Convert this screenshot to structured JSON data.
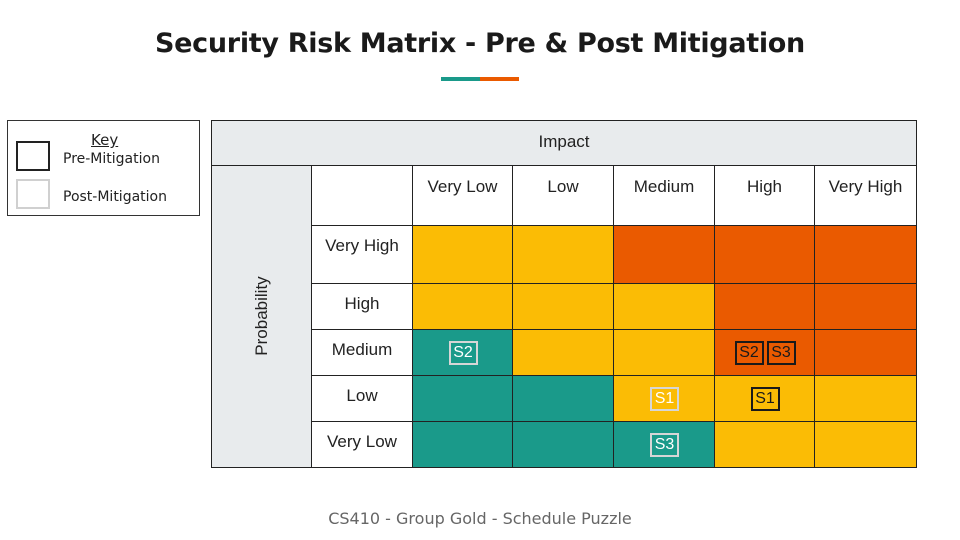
{
  "title": "Security Risk Matrix - Pre & Post Mitigation",
  "footer": "CS410 - Group Gold - Schedule Puzzle",
  "colors": {
    "teal": "#1a9a8a",
    "yellow": "#fbbc05",
    "orange": "#ea5a00",
    "accent_teal": "#1a9a8a",
    "accent_orange": "#ea5a00"
  },
  "key": {
    "title": "Key",
    "pre_label": "Pre-Mitigation",
    "post_label": "Post-Mitigation"
  },
  "matrix": {
    "impact_label": "Impact",
    "probability_label": "Probability",
    "impact_levels": [
      "Very Low",
      "Low",
      "Medium",
      "High",
      "Very High"
    ],
    "probability_levels": [
      "Very High",
      "High",
      "Medium",
      "Low",
      "Very Low"
    ],
    "cells": [
      [
        "yellow",
        "yellow",
        "orange",
        "orange",
        "orange"
      ],
      [
        "yellow",
        "yellow",
        "yellow",
        "orange",
        "orange"
      ],
      [
        "teal",
        "yellow",
        "yellow",
        "orange",
        "orange"
      ],
      [
        "teal",
        "teal",
        "yellow",
        "yellow",
        "yellow"
      ],
      [
        "teal",
        "teal",
        "teal",
        "yellow",
        "yellow"
      ]
    ],
    "risks": [
      {
        "label": "S2",
        "phase": "post",
        "probability": "Medium",
        "impact": "Very Low"
      },
      {
        "label": "S2",
        "phase": "pre",
        "probability": "Medium",
        "impact": "High"
      },
      {
        "label": "S3",
        "phase": "pre",
        "probability": "Medium",
        "impact": "High"
      },
      {
        "label": "S1",
        "phase": "post",
        "probability": "Low",
        "impact": "Medium"
      },
      {
        "label": "S1",
        "phase": "pre",
        "probability": "Low",
        "impact": "High"
      },
      {
        "label": "S3",
        "phase": "post",
        "probability": "Very Low",
        "impact": "Medium"
      }
    ]
  }
}
